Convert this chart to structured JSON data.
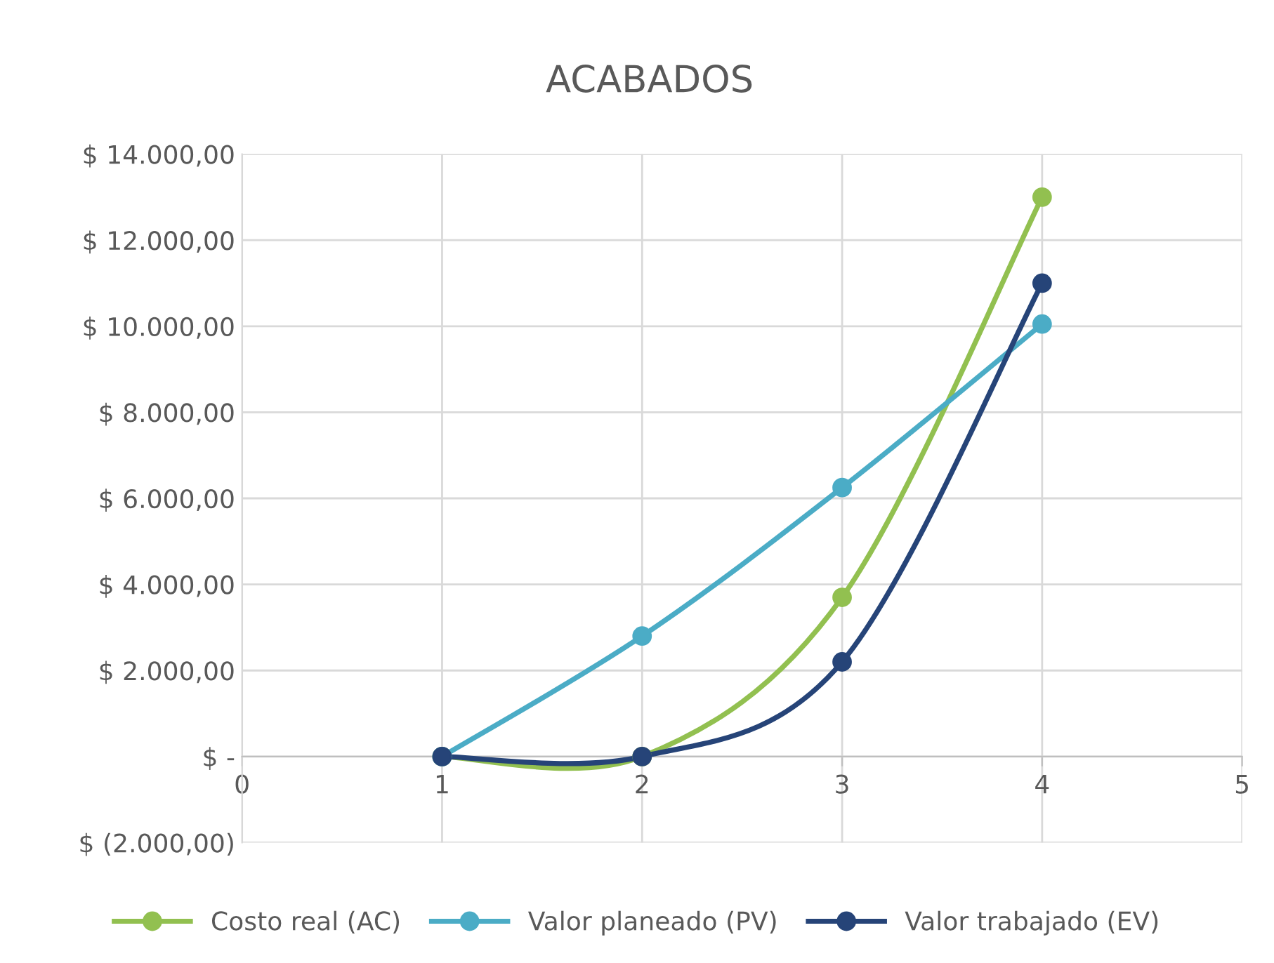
{
  "chart_data": {
    "type": "line",
    "title": "ACABADOS",
    "x": [
      1,
      2,
      3,
      4
    ],
    "series": [
      {
        "name": "Costo real (AC)",
        "color": "#92c050",
        "values": [
          0,
          0,
          3700,
          13000
        ]
      },
      {
        "name": "Valor planeado (PV)",
        "color": "#4bacc6",
        "values": [
          0,
          2800,
          6250,
          10050
        ]
      },
      {
        "name": "Valor trabajado (EV)",
        "color": "#264478",
        "values": [
          0,
          0,
          2200,
          11000
        ]
      }
    ],
    "xlim": [
      0,
      5
    ],
    "xticks": [
      0,
      1,
      2,
      3,
      4,
      5
    ],
    "ylim": [
      -2000,
      14000
    ],
    "yticks": [
      {
        "value": -2000,
        "label": "$ (2.000,00)"
      },
      {
        "value": 0,
        "label": "$ -"
      },
      {
        "value": 2000,
        "label": "$ 2.000,00"
      },
      {
        "value": 4000,
        "label": "$ 4.000,00"
      },
      {
        "value": 6000,
        "label": "$ 6.000,00"
      },
      {
        "value": 8000,
        "label": "$ 8.000,00"
      },
      {
        "value": 10000,
        "label": "$ 10.000,00"
      },
      {
        "value": 12000,
        "label": "$ 12.000,00"
      },
      {
        "value": 14000,
        "label": "$ 14.000,00"
      }
    ],
    "grid": true,
    "legend": "bottom",
    "marker": "circle",
    "line_style": "solid"
  }
}
